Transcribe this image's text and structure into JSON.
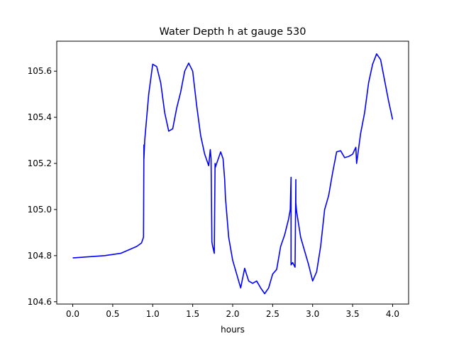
{
  "chart_data": {
    "type": "line",
    "title": "Water Depth h at gauge 530",
    "xlabel": "hours",
    "ylabel": "",
    "xlim": [
      -0.2,
      4.2
    ],
    "ylim": [
      104.59,
      105.73
    ],
    "grid": false,
    "legend": "none",
    "x_ticks": [
      0.0,
      0.5,
      1.0,
      1.5,
      2.0,
      2.5,
      3.0,
      3.5,
      4.0
    ],
    "x_tick_labels": [
      "0.0",
      "0.5",
      "1.0",
      "1.5",
      "2.0",
      "2.5",
      "3.0",
      "3.5",
      "4.0"
    ],
    "y_ticks": [
      104.6,
      104.8,
      105.0,
      105.2,
      105.4,
      105.6
    ],
    "y_tick_labels": [
      "104.6",
      "104.8",
      "105.0",
      "105.2",
      "105.4",
      "105.6"
    ],
    "series": [
      {
        "color": "#0000ff",
        "x": [
          0.0,
          0.2,
          0.4,
          0.6,
          0.7,
          0.8,
          0.86,
          0.885,
          0.89,
          0.89,
          0.9,
          0.95,
          1.0,
          1.05,
          1.1,
          1.15,
          1.2,
          1.25,
          1.3,
          1.35,
          1.4,
          1.45,
          1.5,
          1.55,
          1.6,
          1.65,
          1.7,
          1.72,
          1.73,
          1.74,
          1.74,
          1.75,
          1.77,
          1.78,
          1.78,
          1.8,
          1.85,
          1.88,
          1.9,
          1.91,
          1.95,
          2.0,
          2.05,
          2.1,
          2.15,
          2.2,
          2.25,
          2.3,
          2.35,
          2.4,
          2.45,
          2.5,
          2.55,
          2.6,
          2.65,
          2.7,
          2.72,
          2.73,
          2.73,
          2.75,
          2.78,
          2.79,
          2.79,
          2.8,
          2.85,
          2.9,
          2.95,
          3.0,
          3.05,
          3.1,
          3.15,
          3.2,
          3.25,
          3.3,
          3.35,
          3.4,
          3.45,
          3.5,
          3.54,
          3.55,
          3.6,
          3.65,
          3.7,
          3.75,
          3.8,
          3.85,
          3.9,
          3.95,
          4.0
        ],
        "values": [
          104.79,
          104.795,
          104.8,
          104.81,
          104.825,
          104.84,
          104.855,
          104.88,
          105.28,
          105.22,
          105.3,
          105.5,
          105.63,
          105.62,
          105.55,
          105.42,
          105.34,
          105.35,
          105.44,
          105.51,
          105.6,
          105.635,
          105.6,
          105.45,
          105.32,
          105.24,
          105.19,
          105.26,
          105.22,
          104.86,
          104.86,
          104.84,
          104.81,
          105.2,
          105.18,
          105.2,
          105.25,
          105.22,
          105.13,
          105.05,
          104.88,
          104.78,
          104.72,
          104.66,
          104.745,
          104.69,
          104.68,
          104.69,
          104.66,
          104.635,
          104.66,
          104.72,
          104.74,
          104.84,
          104.89,
          104.96,
          105.0,
          105.14,
          104.76,
          104.77,
          104.75,
          105.13,
          105.03,
          104.99,
          104.88,
          104.82,
          104.76,
          104.69,
          104.73,
          104.84,
          105.0,
          105.06,
          105.16,
          105.25,
          105.255,
          105.225,
          105.23,
          105.24,
          105.27,
          105.2,
          105.33,
          105.42,
          105.55,
          105.63,
          105.675,
          105.65,
          105.56,
          105.47,
          105.39
        ]
      }
    ]
  }
}
